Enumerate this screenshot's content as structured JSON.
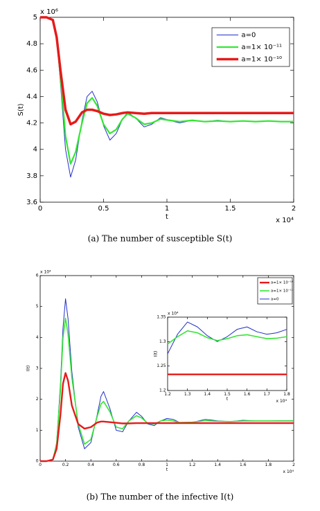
{
  "chart_data": [
    {
      "type": "line",
      "xlabel": "t",
      "ylabel": "S(t)",
      "x_multiplier": "x 10⁴",
      "y_multiplier": "x 10⁶",
      "caption": "(a) The number of susceptible S(t)",
      "x": [
        0,
        0.05,
        0.1,
        0.13,
        0.16,
        0.2,
        0.24,
        0.28,
        0.33,
        0.37,
        0.41,
        0.45,
        0.5,
        0.55,
        0.6,
        0.65,
        0.69,
        0.75,
        0.82,
        0.88,
        0.95,
        1.02,
        1.1,
        1.2,
        1.3,
        1.4,
        1.5,
        1.6,
        1.7,
        1.8,
        1.9,
        2
      ],
      "series": [
        {
          "name": "a=0",
          "color": "#1f2fc8",
          "width": 1,
          "values": [
            5,
            5,
            4.98,
            4.85,
            4.5,
            4.0,
            3.79,
            3.92,
            4.22,
            4.4,
            4.44,
            4.36,
            4.18,
            4.07,
            4.12,
            4.23,
            4.28,
            4.24,
            4.17,
            4.19,
            4.24,
            4.22,
            4.2,
            4.22,
            4.21,
            4.22,
            4.21,
            4.215,
            4.21,
            4.215,
            4.21,
            4.21
          ]
        },
        {
          "name": "a=1× 10⁻¹¹",
          "color": "#33e633",
          "width": 2.2,
          "values": [
            5,
            5,
            4.98,
            4.85,
            4.55,
            4.1,
            3.89,
            3.98,
            4.2,
            4.35,
            4.39,
            4.33,
            4.19,
            4.12,
            4.15,
            4.23,
            4.27,
            4.24,
            4.19,
            4.2,
            4.23,
            4.22,
            4.21,
            4.22,
            4.21,
            4.215,
            4.21,
            4.215,
            4.21,
            4.215,
            4.21,
            4.21
          ]
        },
        {
          "name": "a=1× 10⁻¹⁰",
          "color": "#e61a1a",
          "width": 3.5,
          "values": [
            5,
            5,
            4.98,
            4.85,
            4.6,
            4.3,
            4.19,
            4.21,
            4.28,
            4.3,
            4.3,
            4.29,
            4.27,
            4.26,
            4.265,
            4.275,
            4.28,
            4.275,
            4.27,
            4.275,
            4.275,
            4.275,
            4.275,
            4.275,
            4.275,
            4.275,
            4.275,
            4.275,
            4.275,
            4.275,
            4.275,
            4.275
          ]
        }
      ],
      "legend_order": [
        0,
        1,
        2
      ],
      "xlim": [
        0,
        2
      ],
      "xticks": [
        0,
        0.5,
        1,
        1.5,
        2
      ],
      "ylim": [
        3.6,
        5
      ],
      "yticks": [
        3.6,
        3.8,
        4,
        4.2,
        4.4,
        4.6,
        4.8,
        5
      ]
    },
    {
      "type": "line",
      "xlabel": "t",
      "ylabel": "I(t)",
      "x_multiplier": "x 10⁴",
      "y_multiplier": "x 10⁴",
      "caption": "(b) The number of the infective I(t)",
      "x": [
        0,
        0.05,
        0.1,
        0.13,
        0.16,
        0.18,
        0.2,
        0.22,
        0.25,
        0.3,
        0.35,
        0.4,
        0.45,
        0.48,
        0.5,
        0.55,
        0.6,
        0.65,
        0.7,
        0.76,
        0.8,
        0.85,
        0.9,
        0.95,
        1,
        1.05,
        1.1,
        1.2,
        1.3,
        1.35,
        1.4,
        1.5,
        1.6,
        1.7,
        1.8,
        1.9,
        2
      ],
      "series": [
        {
          "name": "a=0",
          "color": "#1f2fc8",
          "width": 1,
          "values": [
            0,
            0,
            0.05,
            0.6,
            2.5,
            4.3,
            5.25,
            4.6,
            2.9,
            1.1,
            0.4,
            0.6,
            1.5,
            2.1,
            2.25,
            1.7,
            1.0,
            0.95,
            1.3,
            1.58,
            1.45,
            1.2,
            1.15,
            1.3,
            1.38,
            1.35,
            1.25,
            1.25,
            1.35,
            1.33,
            1.3,
            1.28,
            1.32,
            1.3,
            1.3,
            1.31,
            1.31
          ]
        },
        {
          "name": "a=1× 10⁻¹¹",
          "color": "#33e633",
          "width": 1.6,
          "values": [
            0,
            0,
            0.05,
            0.55,
            2.3,
            4.0,
            4.62,
            4.1,
            2.7,
            1.2,
            0.55,
            0.7,
            1.45,
            1.85,
            1.93,
            1.6,
            1.1,
            1.05,
            1.3,
            1.47,
            1.4,
            1.22,
            1.2,
            1.3,
            1.33,
            1.3,
            1.25,
            1.26,
            1.31,
            1.3,
            1.29,
            1.28,
            1.3,
            1.3,
            1.3,
            1.3,
            1.3
          ]
        },
        {
          "name": "a=1× 10⁻¹⁰",
          "color": "#e61a1a",
          "width": 2.4,
          "values": [
            0,
            0,
            0.05,
            0.4,
            1.5,
            2.5,
            2.85,
            2.6,
            1.8,
            1.2,
            1.05,
            1.1,
            1.25,
            1.28,
            1.28,
            1.26,
            1.24,
            1.22,
            1.22,
            1.23,
            1.23,
            1.23,
            1.23,
            1.23,
            1.23,
            1.23,
            1.23,
            1.23,
            1.23,
            1.23,
            1.23,
            1.23,
            1.23,
            1.23,
            1.23,
            1.23,
            1.23
          ]
        }
      ],
      "legend_order": [
        2,
        1,
        0
      ],
      "xlim": [
        0,
        2
      ],
      "xticks": [
        0,
        0.2,
        0.4,
        0.6,
        0.8,
        1,
        1.2,
        1.4,
        1.6,
        1.8,
        2
      ],
      "ylim": [
        0,
        6
      ],
      "yticks": [
        0,
        1,
        2,
        3,
        4,
        5,
        6
      ]
    },
    {
      "type": "line",
      "xlabel": "t",
      "ylabel": "I(t)",
      "x_multiplier": "x 10⁴",
      "y_multiplier": "x 10⁴",
      "x": [
        1.2,
        1.25,
        1.3,
        1.35,
        1.4,
        1.45,
        1.5,
        1.55,
        1.6,
        1.65,
        1.7,
        1.75,
        1.8
      ],
      "series": [
        {
          "color": "#1f2fc8",
          "width": 1,
          "values": [
            1.275,
            1.315,
            1.34,
            1.33,
            1.312,
            1.3,
            1.31,
            1.325,
            1.33,
            1.32,
            1.315,
            1.318,
            1.325
          ]
        },
        {
          "color": "#33e633",
          "width": 1.6,
          "values": [
            1.295,
            1.31,
            1.322,
            1.318,
            1.308,
            1.302,
            1.306,
            1.312,
            1.314,
            1.31,
            1.306,
            1.307,
            1.31
          ]
        },
        {
          "color": "#e61a1a",
          "width": 2.4,
          "values": [
            1.233,
            1.233,
            1.233,
            1.233,
            1.233,
            1.233,
            1.233,
            1.233,
            1.233,
            1.233,
            1.233,
            1.233,
            1.233
          ]
        }
      ],
      "xlim": [
        1.2,
        1.8
      ],
      "xticks": [
        1.2,
        1.3,
        1.4,
        1.5,
        1.6,
        1.7,
        1.8
      ],
      "ylim": [
        1.2,
        1.35
      ],
      "yticks": [
        1.2,
        1.25,
        1.3,
        1.35
      ]
    }
  ]
}
